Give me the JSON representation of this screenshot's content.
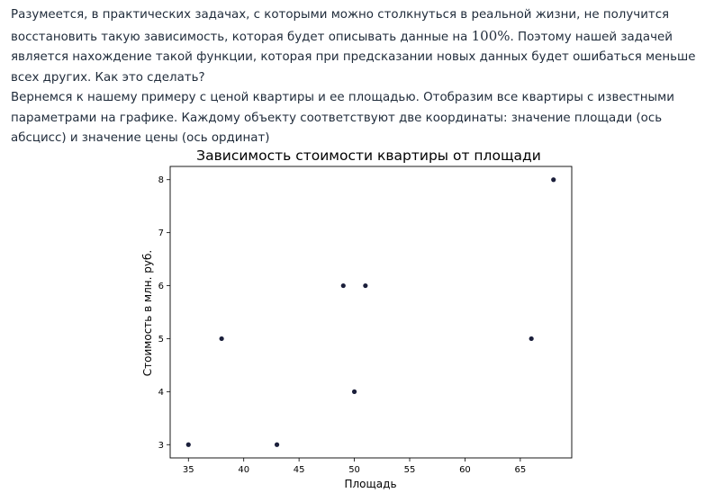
{
  "paragraph": {
    "part1": "Разумеется, в практических задачах, с которыми можно столкнуться в реальной жизни, не получится восстановить такую зависимость, которая будет описывать данные на ",
    "percent": "100%",
    "part2": ". Поэтому нашей задачей является нахождение такой функции, которая при предсказании новых данных будет ошибаться меньше всех других. Как это сделать?",
    "part3": "Вернемся к нашему примеру с ценой квартиры и ее площадью. Отобразим все квартиры с известными параметрами на графике. Каждому объекту соответствуют две координаты: значение площади (ось абсцисс) и значение цены (ось ординат)"
  },
  "chart_data": {
    "type": "scatter",
    "title": "Зависимость стоимости квартиры от площади",
    "xlabel": "Площадь",
    "ylabel": "Стоимость в млн. руб.",
    "xlim": [
      33.35,
      69.65
    ],
    "ylim": [
      2.75,
      8.25
    ],
    "xticks": [
      35,
      40,
      45,
      50,
      55,
      60,
      65
    ],
    "yticks": [
      3,
      4,
      5,
      6,
      7,
      8
    ],
    "grid": false,
    "point_color": "#1b1f3b",
    "points": [
      {
        "x": 35,
        "y": 3
      },
      {
        "x": 38,
        "y": 5
      },
      {
        "x": 43,
        "y": 3
      },
      {
        "x": 49,
        "y": 6
      },
      {
        "x": 50,
        "y": 4
      },
      {
        "x": 51,
        "y": 6
      },
      {
        "x": 66,
        "y": 5
      },
      {
        "x": 68,
        "y": 8
      }
    ]
  }
}
